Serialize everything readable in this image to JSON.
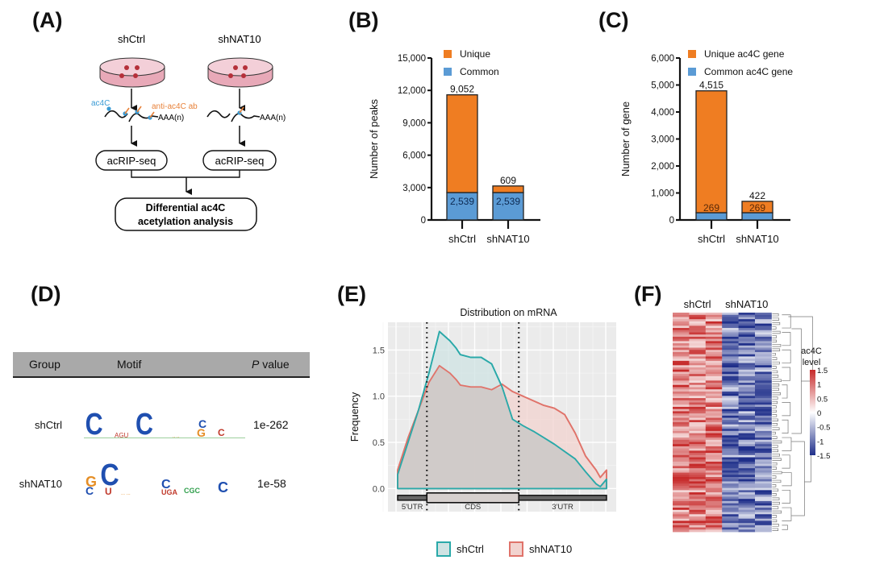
{
  "panels": {
    "A": {
      "label": "(A)",
      "groups": [
        "shCtrl",
        "shNAT10"
      ],
      "ac4c_label": "ac4C",
      "antibody_label": "anti-ac4C ab",
      "polya_label": "AAA(n)",
      "step_label": "acRIP-seq",
      "final_step_line1": "Differential ac4C",
      "final_step_line2": "acetylation analysis",
      "colors": {
        "dish": "#e8a9b8",
        "cell": "#b5303a",
        "ac4c": "#3a9bd5",
        "antibody": "#e8823a"
      }
    },
    "B": {
      "label": "(B)"
    },
    "C": {
      "label": "(C)"
    },
    "D": {
      "label": "(D)",
      "headers": {
        "group": "Group",
        "motif": "Motif",
        "p_italic": "P",
        "p_rest": " value"
      },
      "rows": [
        {
          "group": "shCtrl",
          "motif": "C..C..GC",
          "p_value": "1e-262"
        },
        {
          "group": "shNAT10",
          "motif": "GC..C..C",
          "p_value": "1e-58"
        }
      ]
    },
    "E": {
      "label": "(E)"
    },
    "F": {
      "label": "(F)"
    }
  },
  "chart_data": [
    {
      "id": "B",
      "type": "bar",
      "stacked": true,
      "title": "",
      "xlabel": "",
      "ylabel": "Number of peaks",
      "categories": [
        "shCtrl",
        "shNAT10"
      ],
      "series": [
        {
          "name": "Common",
          "color": "#5b9bd5",
          "values": [
            2539,
            2539
          ],
          "labels": [
            "2,539",
            "2,539"
          ]
        },
        {
          "name": "Unique",
          "color": "#ef7d22",
          "values": [
            9052,
            609
          ],
          "labels": [
            "9,052",
            "609"
          ]
        }
      ],
      "legend": [
        "Unique",
        "Common"
      ],
      "legend_position": "top",
      "ylim": [
        0,
        15000
      ],
      "yticks": [
        0,
        3000,
        6000,
        9000,
        12000,
        15000
      ],
      "ytick_labels": [
        "0",
        "3,000",
        "6,000",
        "9,000",
        "12,000",
        "15,000"
      ]
    },
    {
      "id": "C",
      "type": "bar",
      "stacked": true,
      "title": "",
      "xlabel": "",
      "ylabel": "Number of gene",
      "categories": [
        "shCtrl",
        "shNAT10"
      ],
      "series": [
        {
          "name": "Common ac4C gene",
          "color": "#5b9bd5",
          "values": [
            269,
            269
          ],
          "labels": [
            "269",
            "269"
          ]
        },
        {
          "name": "Unique ac4C gene",
          "color": "#ef7d22",
          "values": [
            4515,
            422
          ],
          "labels": [
            "4,515",
            "422"
          ]
        }
      ],
      "legend": [
        "Unique ac4C gene",
        "Common ac4C gene"
      ],
      "legend_position": "top",
      "ylim": [
        0,
        6000
      ],
      "yticks": [
        0,
        1000,
        2000,
        3000,
        4000,
        5000,
        6000
      ],
      "ytick_labels": [
        "0",
        "1,000",
        "2,000",
        "3,000",
        "4,000",
        "5,000",
        "6,000"
      ]
    },
    {
      "id": "E",
      "type": "area",
      "title": "Distribution on mRNA",
      "xlabel": "",
      "ylabel": "Frequency",
      "x": [
        0,
        0.05,
        0.1,
        0.15,
        0.2,
        0.25,
        0.28,
        0.3,
        0.35,
        0.4,
        0.45,
        0.5,
        0.55,
        0.6,
        0.65,
        0.7,
        0.75,
        0.8,
        0.85,
        0.9,
        0.95,
        0.97,
        1.0
      ],
      "regions": [
        "5'UTR",
        "CDS",
        "3'UTR"
      ],
      "region_bounds": [
        0.14,
        0.58
      ],
      "series": [
        {
          "name": "shCtrl",
          "color": "#2aa9a9",
          "fill": "#cfe3e3",
          "values": [
            0.15,
            0.5,
            0.85,
            1.25,
            1.7,
            1.6,
            1.52,
            1.45,
            1.42,
            1.42,
            1.35,
            1.1,
            0.75,
            0.68,
            0.62,
            0.55,
            0.48,
            0.4,
            0.32,
            0.18,
            0.05,
            0.02,
            0.1
          ]
        },
        {
          "name": "shNAT10",
          "color": "#e0736a",
          "fill": "#f2d3cf",
          "values": [
            0.2,
            0.55,
            0.85,
            1.15,
            1.33,
            1.25,
            1.18,
            1.12,
            1.1,
            1.1,
            1.07,
            1.13,
            1.05,
            1.0,
            0.95,
            0.9,
            0.87,
            0.8,
            0.6,
            0.35,
            0.2,
            0.12,
            0.2
          ]
        }
      ],
      "legend": [
        "shCtrl",
        "shNAT10"
      ],
      "legend_position": "bottom",
      "ylim": [
        -0.25,
        1.8
      ],
      "yticks": [
        0.0,
        0.5,
        1.0,
        1.5
      ],
      "ytick_labels": [
        "0.0",
        "0.5",
        "1.0",
        "1.5"
      ],
      "grid": true
    },
    {
      "id": "F",
      "type": "heatmap",
      "title": "",
      "column_groups": [
        {
          "name": "shCtrl",
          "columns": 3
        },
        {
          "name": "shNAT10",
          "columns": 3
        }
      ],
      "row_count": 100,
      "colorbar_title_line1": "ac4C",
      "colorbar_title_line2": "level",
      "colorbar_ticks": [
        1.5,
        1,
        0.5,
        0,
        -0.5,
        -1,
        -1.5
      ],
      "colorbar_tick_labels": [
        "1.5",
        "1",
        "0.5",
        "0",
        "-0.5",
        "-1",
        "-1.5"
      ],
      "color_low": "#1f2f8a",
      "color_mid": "#ffffff",
      "color_high": "#c62a2a",
      "value_range": [
        -1.5,
        1.5
      ],
      "group_means": [
        0.9,
        -0.9
      ],
      "dendrogram": "right"
    }
  ]
}
